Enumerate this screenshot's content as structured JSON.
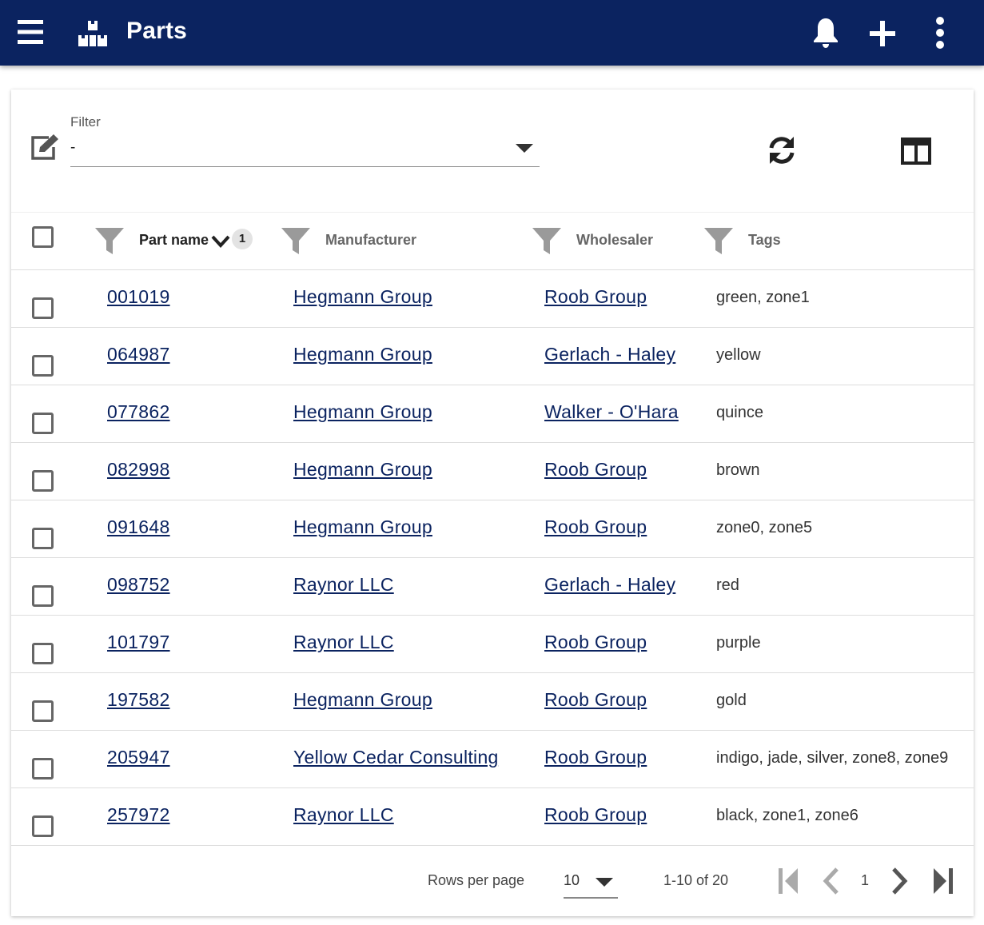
{
  "appbar": {
    "title": "Parts",
    "menu_icon": "hamburger-menu-icon",
    "logo_icon": "parts-boxes-icon",
    "actions": [
      "bell-icon",
      "plus-icon",
      "more-vert-icon"
    ],
    "color": "#0b2360"
  },
  "toolbar": {
    "filter_label": "Filter",
    "filter_value": "-",
    "edit_icon": "edit-icon",
    "refresh_icon": "refresh-icon",
    "columns_icon": "columns-icon"
  },
  "table": {
    "columns": [
      {
        "label": "Part name",
        "sorted": "desc",
        "sort_order": "1"
      },
      {
        "label": "Manufacturer"
      },
      {
        "label": "Wholesaler"
      },
      {
        "label": "Tags"
      }
    ],
    "rows": [
      {
        "part": "001019",
        "manufacturer": "Hegmann Group",
        "wholesaler": "Roob Group",
        "tags": "green, zone1"
      },
      {
        "part": "064987",
        "manufacturer": "Hegmann Group",
        "wholesaler": "Gerlach - Haley",
        "tags": "yellow"
      },
      {
        "part": "077862",
        "manufacturer": "Hegmann Group",
        "wholesaler": "Walker - O'Hara",
        "tags": "quince"
      },
      {
        "part": "082998",
        "manufacturer": "Hegmann Group",
        "wholesaler": "Roob Group",
        "tags": "brown"
      },
      {
        "part": "091648",
        "manufacturer": "Hegmann Group",
        "wholesaler": "Roob Group",
        "tags": "zone0, zone5"
      },
      {
        "part": "098752",
        "manufacturer": "Raynor LLC",
        "wholesaler": "Gerlach - Haley",
        "tags": "red"
      },
      {
        "part": "101797",
        "manufacturer": "Raynor LLC",
        "wholesaler": "Roob Group",
        "tags": "purple"
      },
      {
        "part": "197582",
        "manufacturer": "Hegmann Group",
        "wholesaler": "Roob Group",
        "tags": "gold"
      },
      {
        "part": "205947",
        "manufacturer": "Yellow Cedar Consulting",
        "wholesaler": "Roob Group",
        "tags": "indigo, jade, silver, zone8, zone9"
      },
      {
        "part": "257972",
        "manufacturer": "Raynor LLC",
        "wholesaler": "Roob Group",
        "tags": "black, zone1, zone6"
      }
    ]
  },
  "pagination": {
    "rows_per_page_label": "Rows per page",
    "rows_per_page": "10",
    "range": "1-10 of 20",
    "page": "1"
  }
}
